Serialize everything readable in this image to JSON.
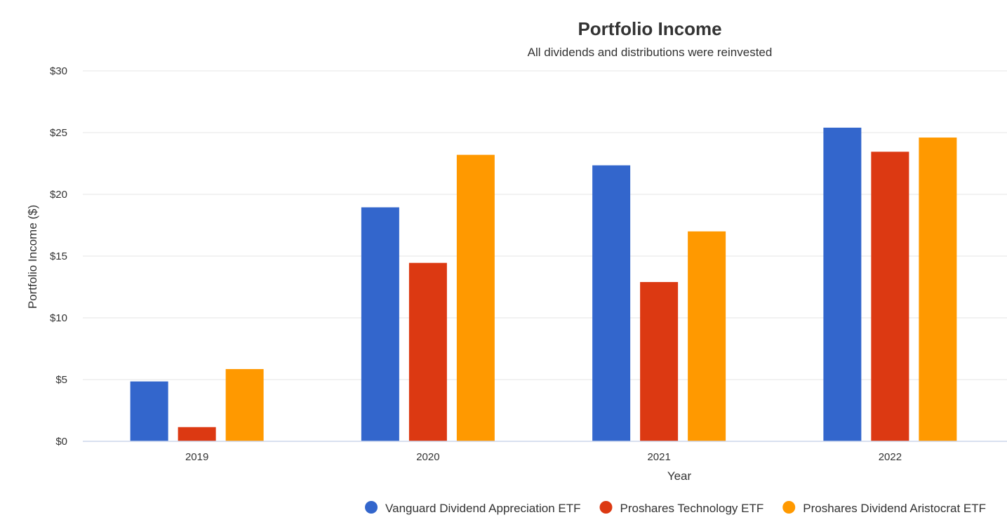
{
  "chart_data": {
    "type": "bar",
    "title": "Portfolio Income",
    "subtitle": "All dividends and distributions were reinvested",
    "xlabel": "Year",
    "ylabel": "Portfolio Income ($)",
    "categories": [
      "2019",
      "2020",
      "2021",
      "2022"
    ],
    "ylim": [
      0,
      30
    ],
    "yticks": [
      0,
      5,
      10,
      15,
      20,
      25,
      30
    ],
    "ytick_labels": [
      "$0",
      "$5",
      "$10",
      "$15",
      "$20",
      "$25",
      "$30"
    ],
    "grid": true,
    "legend_position": "bottom-right",
    "series": [
      {
        "name": "Vanguard Dividend Appreciation ETF",
        "color": "#3366cc",
        "values": [
          4.85,
          18.95,
          22.35,
          25.4
        ]
      },
      {
        "name": "Proshares Technology ETF",
        "color": "#dc3912",
        "values": [
          1.15,
          14.45,
          12.9,
          23.45
        ]
      },
      {
        "name": "Proshares Dividend Aristocrat ETF",
        "color": "#ff9900",
        "values": [
          5.85,
          23.2,
          17.0,
          24.6
        ]
      }
    ]
  }
}
